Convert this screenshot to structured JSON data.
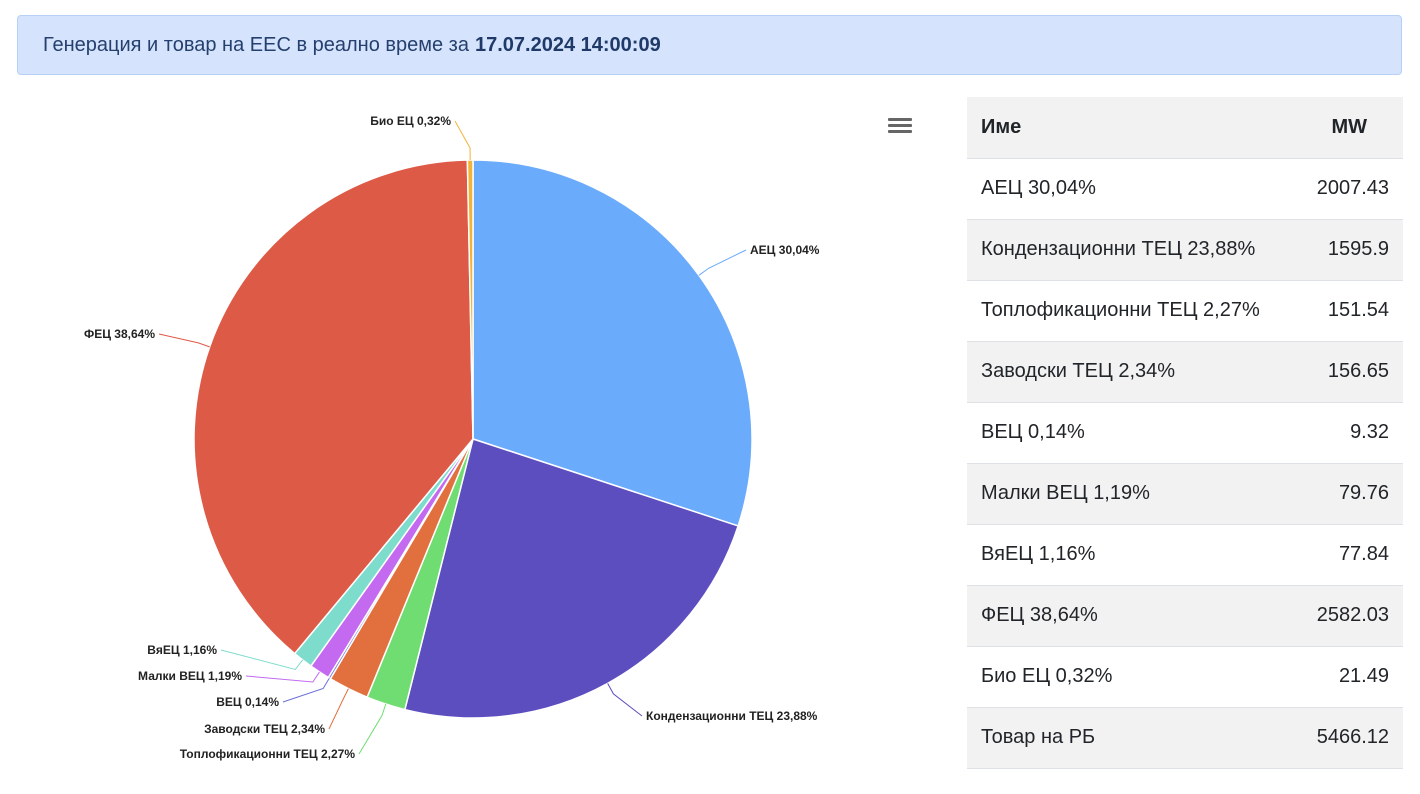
{
  "header": {
    "title": "Генерация и товар на ЕЕС в реално време за",
    "timestamp": "17.07.2024 14:00:09"
  },
  "chart_menu": {
    "icon": "hamburger-menu-icon"
  },
  "table": {
    "columns": [
      "Име",
      "MW"
    ],
    "rows": [
      {
        "name": "АЕЦ 30,04%",
        "value": "2007.43"
      },
      {
        "name": "Кондензационни ТЕЦ 23,88%",
        "value": "1595.9"
      },
      {
        "name": "Топлофикационни ТЕЦ 2,27%",
        "value": "151.54"
      },
      {
        "name": "Заводски ТЕЦ 2,34%",
        "value": "156.65"
      },
      {
        "name": "ВЕЦ 0,14%",
        "value": "9.32"
      },
      {
        "name": "Малки ВЕЦ 1,19%",
        "value": "79.76"
      },
      {
        "name": "ВяЕЦ 1,16%",
        "value": "77.84"
      },
      {
        "name": "ФЕЦ 38,64%",
        "value": "2582.03"
      },
      {
        "name": "Био ЕЦ 0,32%",
        "value": "21.49"
      },
      {
        "name": "Товар на РБ",
        "value": "5466.12"
      }
    ]
  },
  "chart_data": {
    "type": "pie",
    "title": "",
    "slices": [
      {
        "label": "АЕЦ 30,04%",
        "value": 2007.43,
        "color": "#6aabfb"
      },
      {
        "label": "Кондензационни ТЕЦ 23,88%",
        "value": 1595.9,
        "color": "#5d4ec0"
      },
      {
        "label": "Топлофикационни ТЕЦ 2,27%",
        "value": 151.54,
        "color": "#70dd72"
      },
      {
        "label": "Заводски ТЕЦ 2,34%",
        "value": 156.65,
        "color": "#e2703e"
      },
      {
        "label": "ВЕЦ 0,14%",
        "value": 9.32,
        "color": "#6b6fd6"
      },
      {
        "label": "Малки ВЕЦ 1,19%",
        "value": 79.76,
        "color": "#c36af0"
      },
      {
        "label": "ВяЕЦ 1,16%",
        "value": 77.84,
        "color": "#7edccd"
      },
      {
        "label": "ФЕЦ 38,64%",
        "value": 2582.03,
        "color": "#dd5a47"
      },
      {
        "label": "Био ЕЦ 0,32%",
        "value": 21.49,
        "color": "#f1b33c"
      }
    ]
  }
}
